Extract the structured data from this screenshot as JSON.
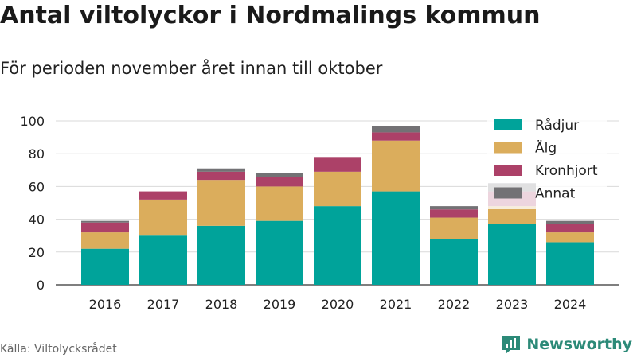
{
  "title": "Antal viltolyckor i Nordmalings kommun",
  "subtitle": "För perioden november året innan till oktober",
  "source": "Källa: Viltolycksrådet",
  "brand": "Newsworthy",
  "colors": {
    "Rådjur": "#00a39a",
    "Älg": "#dbad5c",
    "Kronhjort": "#ac4168",
    "Annat": "#737275"
  },
  "chart_data": {
    "type": "bar",
    "stacked": true,
    "categories": [
      "2016",
      "2017",
      "2018",
      "2019",
      "2020",
      "2021",
      "2022",
      "2023",
      "2024"
    ],
    "series": [
      {
        "name": "Rådjur",
        "values": [
          22,
          30,
          36,
          39,
          48,
          57,
          28,
          37,
          26
        ]
      },
      {
        "name": "Älg",
        "values": [
          10,
          22,
          28,
          21,
          21,
          31,
          13,
          11,
          6
        ]
      },
      {
        "name": "Kronhjort",
        "values": [
          6,
          5,
          5,
          6,
          9,
          5,
          5,
          9,
          5
        ]
      },
      {
        "name": "Annat",
        "values": [
          1,
          0,
          2,
          2,
          0,
          4,
          2,
          5,
          2
        ]
      }
    ],
    "ylim": [
      0,
      100
    ],
    "yticks": [
      0,
      20,
      40,
      60,
      80,
      100
    ],
    "grid": true,
    "legend_position": "top-right"
  }
}
